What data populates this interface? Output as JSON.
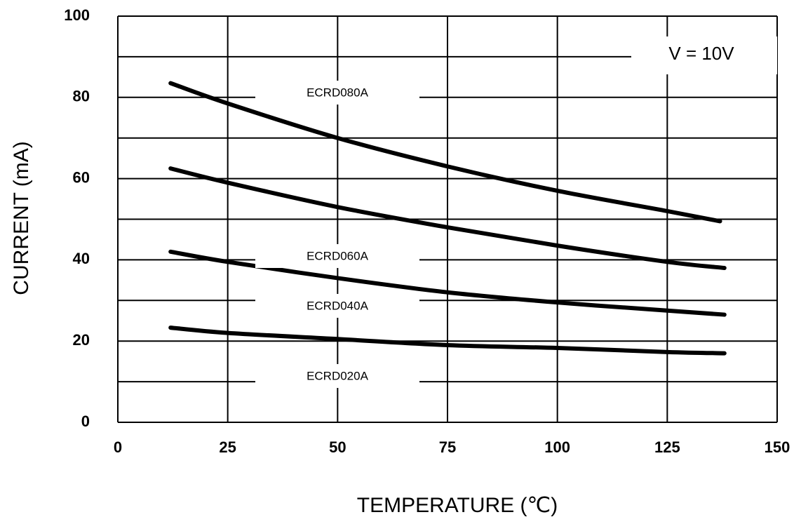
{
  "chart_data": {
    "type": "line",
    "title": "",
    "xlabel": "TEMPERATURE (℃)",
    "ylabel": "CURRENT (mA)",
    "xlim": [
      0,
      150
    ],
    "ylim": [
      0,
      100
    ],
    "x_ticks": [
      "0",
      "25",
      "50",
      "75",
      "100",
      "125",
      "150"
    ],
    "y_ticks": [
      "0",
      "20",
      "40",
      "60",
      "80",
      "100"
    ],
    "grid": true,
    "annotation": "V = 10V",
    "series": [
      {
        "name": "ECRD080A",
        "x": [
          12,
          25,
          50,
          75,
          100,
          125,
          137
        ],
        "y": [
          83.5,
          78.5,
          70,
          63,
          57,
          52,
          49.5
        ]
      },
      {
        "name": "ECRD060A",
        "x": [
          12,
          25,
          50,
          75,
          100,
          125,
          138
        ],
        "y": [
          62.5,
          59,
          53,
          48,
          43.5,
          39.5,
          38
        ]
      },
      {
        "name": "ECRD040A",
        "x": [
          12,
          25,
          50,
          75,
          100,
          125,
          138
        ],
        "y": [
          42,
          39.5,
          35.5,
          32,
          29.5,
          27.5,
          26.5
        ]
      },
      {
        "name": "ECRD020A",
        "x": [
          12,
          25,
          50,
          75,
          100,
          125,
          138
        ],
        "y": [
          23.3,
          22,
          20.5,
          19,
          18.3,
          17.3,
          17
        ]
      }
    ]
  }
}
